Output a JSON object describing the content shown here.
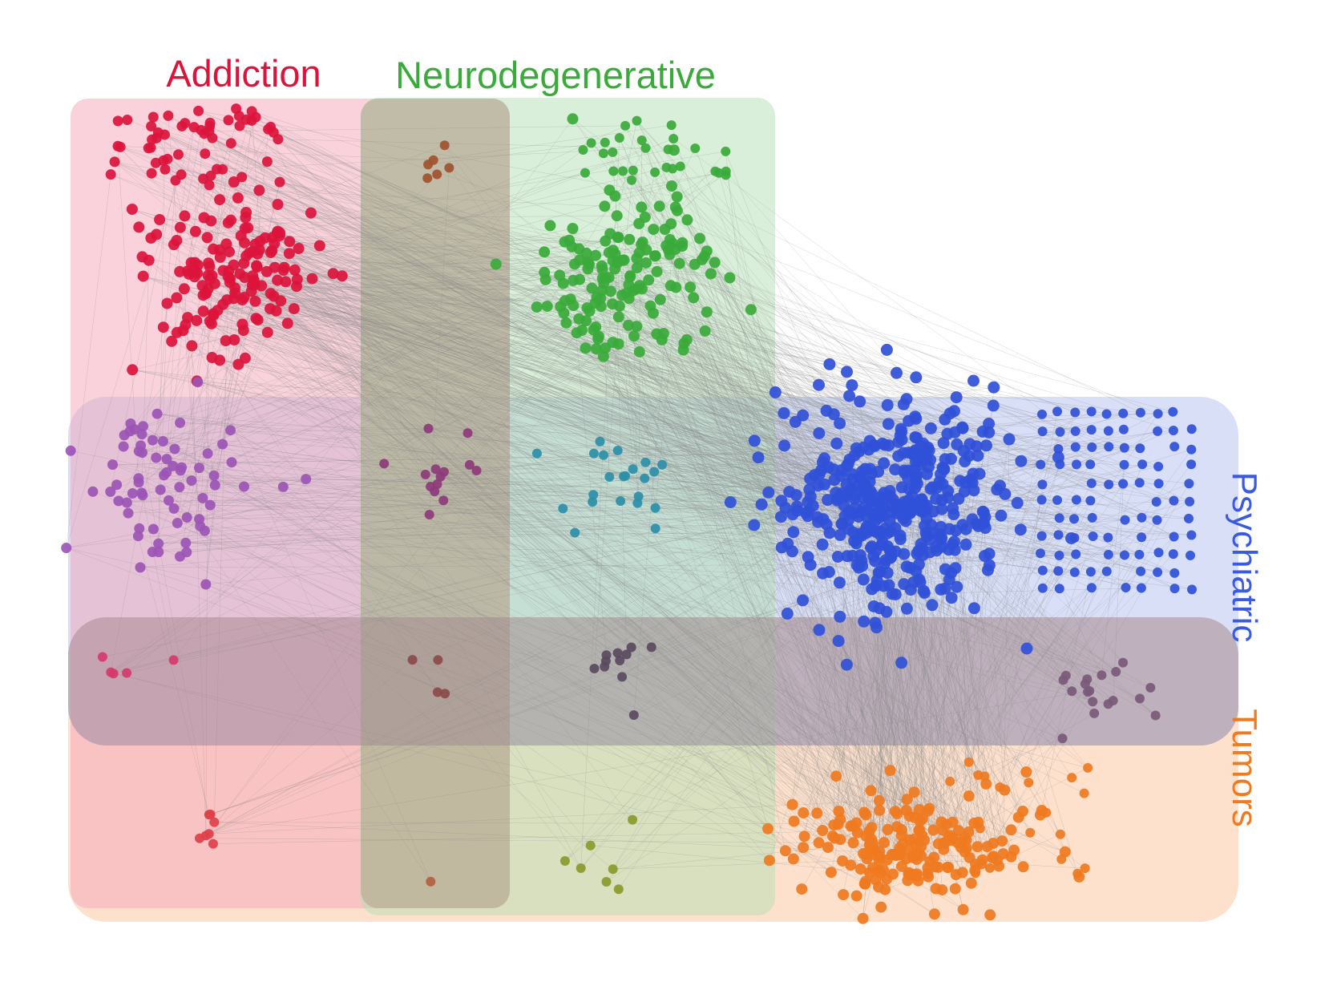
{
  "labels": {
    "addiction": "Addiction",
    "neurodegenerative": "Neurodegenerative",
    "psychiatric": "Psychiatric",
    "tumors": "Tumors"
  },
  "colors": {
    "addiction": "#dc143c",
    "neurodegenerative": "#3aaa3a",
    "psychiatric": "#3050d8",
    "tumors": "#f07a20",
    "addiction_psychiatric": "#9b55b5",
    "addiction_neurodegenerative": "#a0522d",
    "addiction_neuro_psychiatric": "#8e3a7a",
    "neuro_psychiatric": "#2b8fa8",
    "addiction_tumors": "#e0404a",
    "addiction_psychiatric_tumors": "#d43a6a",
    "addiction_neuro_psychiatric_tumors": "#8a4a4a",
    "neuro_psychiatric_tumors": "#5a4a60",
    "psychiatric_tumors": "#7a5a7a",
    "neuro_tumors": "#8a9a2a",
    "addiction_neuro_tumors": "#b06040",
    "edges": "#888888"
  },
  "regions": [
    {
      "id": "addiction",
      "fill": "#f4a6b8",
      "opacity": 0.5
    },
    {
      "id": "neurodegenerative",
      "fill": "#b4e0b4",
      "opacity": 0.5
    },
    {
      "id": "addiction-neurodegenerative-overlap",
      "fill": "#a89a80",
      "opacity": 0.45
    },
    {
      "id": "psychiatric",
      "fill": "#b8c4f0",
      "opacity": 0.55
    },
    {
      "id": "tumors",
      "fill": "#fbc8a4",
      "opacity": 0.55
    },
    {
      "id": "psychiatric-tumors-overlap",
      "fill": "#a08890",
      "opacity": 0.45
    }
  ],
  "clusters": [
    {
      "id": "addiction-top",
      "color": "addiction",
      "count": 55
    },
    {
      "id": "addiction-main",
      "color": "addiction",
      "count": 150
    },
    {
      "id": "addiction-neurodegenerative",
      "color": "addiction_neurodegenerative",
      "count": 6
    },
    {
      "id": "neurodegenerative-top",
      "color": "neurodegenerative",
      "count": 28
    },
    {
      "id": "neurodegenerative-main",
      "color": "neurodegenerative",
      "count": 150
    },
    {
      "id": "addiction-psychiatric",
      "color": "addiction_psychiatric",
      "count": 70
    },
    {
      "id": "addiction-neurodegenerative-psychiatric",
      "color": "addiction_neuro_psychiatric",
      "count": 14
    },
    {
      "id": "neurodegenerative-psychiatric",
      "color": "neuro_psychiatric",
      "count": 22
    },
    {
      "id": "psychiatric-main",
      "color": "psychiatric",
      "count": 420
    },
    {
      "id": "psychiatric-grid",
      "color": "psychiatric",
      "count": 110
    },
    {
      "id": "addiction-psychiatric-tumors",
      "color": "addiction_psychiatric_tumors",
      "count": 5
    },
    {
      "id": "addiction-neurodegenerative-psychiatric-tumors",
      "color": "addiction_neuro_psychiatric_tumors",
      "count": 4
    },
    {
      "id": "neurodegenerative-psychiatric-tumors",
      "color": "neuro_psychiatric_tumors",
      "count": 11
    },
    {
      "id": "psychiatric-tumors",
      "color": "psychiatric_tumors",
      "count": 18
    },
    {
      "id": "addiction-tumors",
      "color": "addiction_tumors",
      "count": 7
    },
    {
      "id": "addiction-neurodegenerative-tumors",
      "color": "addiction_neuro_tumors",
      "count": 1
    },
    {
      "id": "neurodegenerative-tumors",
      "color": "neuro_tumors",
      "count": 7
    },
    {
      "id": "tumors-main",
      "color": "tumors",
      "count": 190
    },
    {
      "id": "tumors-outliers",
      "color": "tumors",
      "count": 18
    }
  ]
}
